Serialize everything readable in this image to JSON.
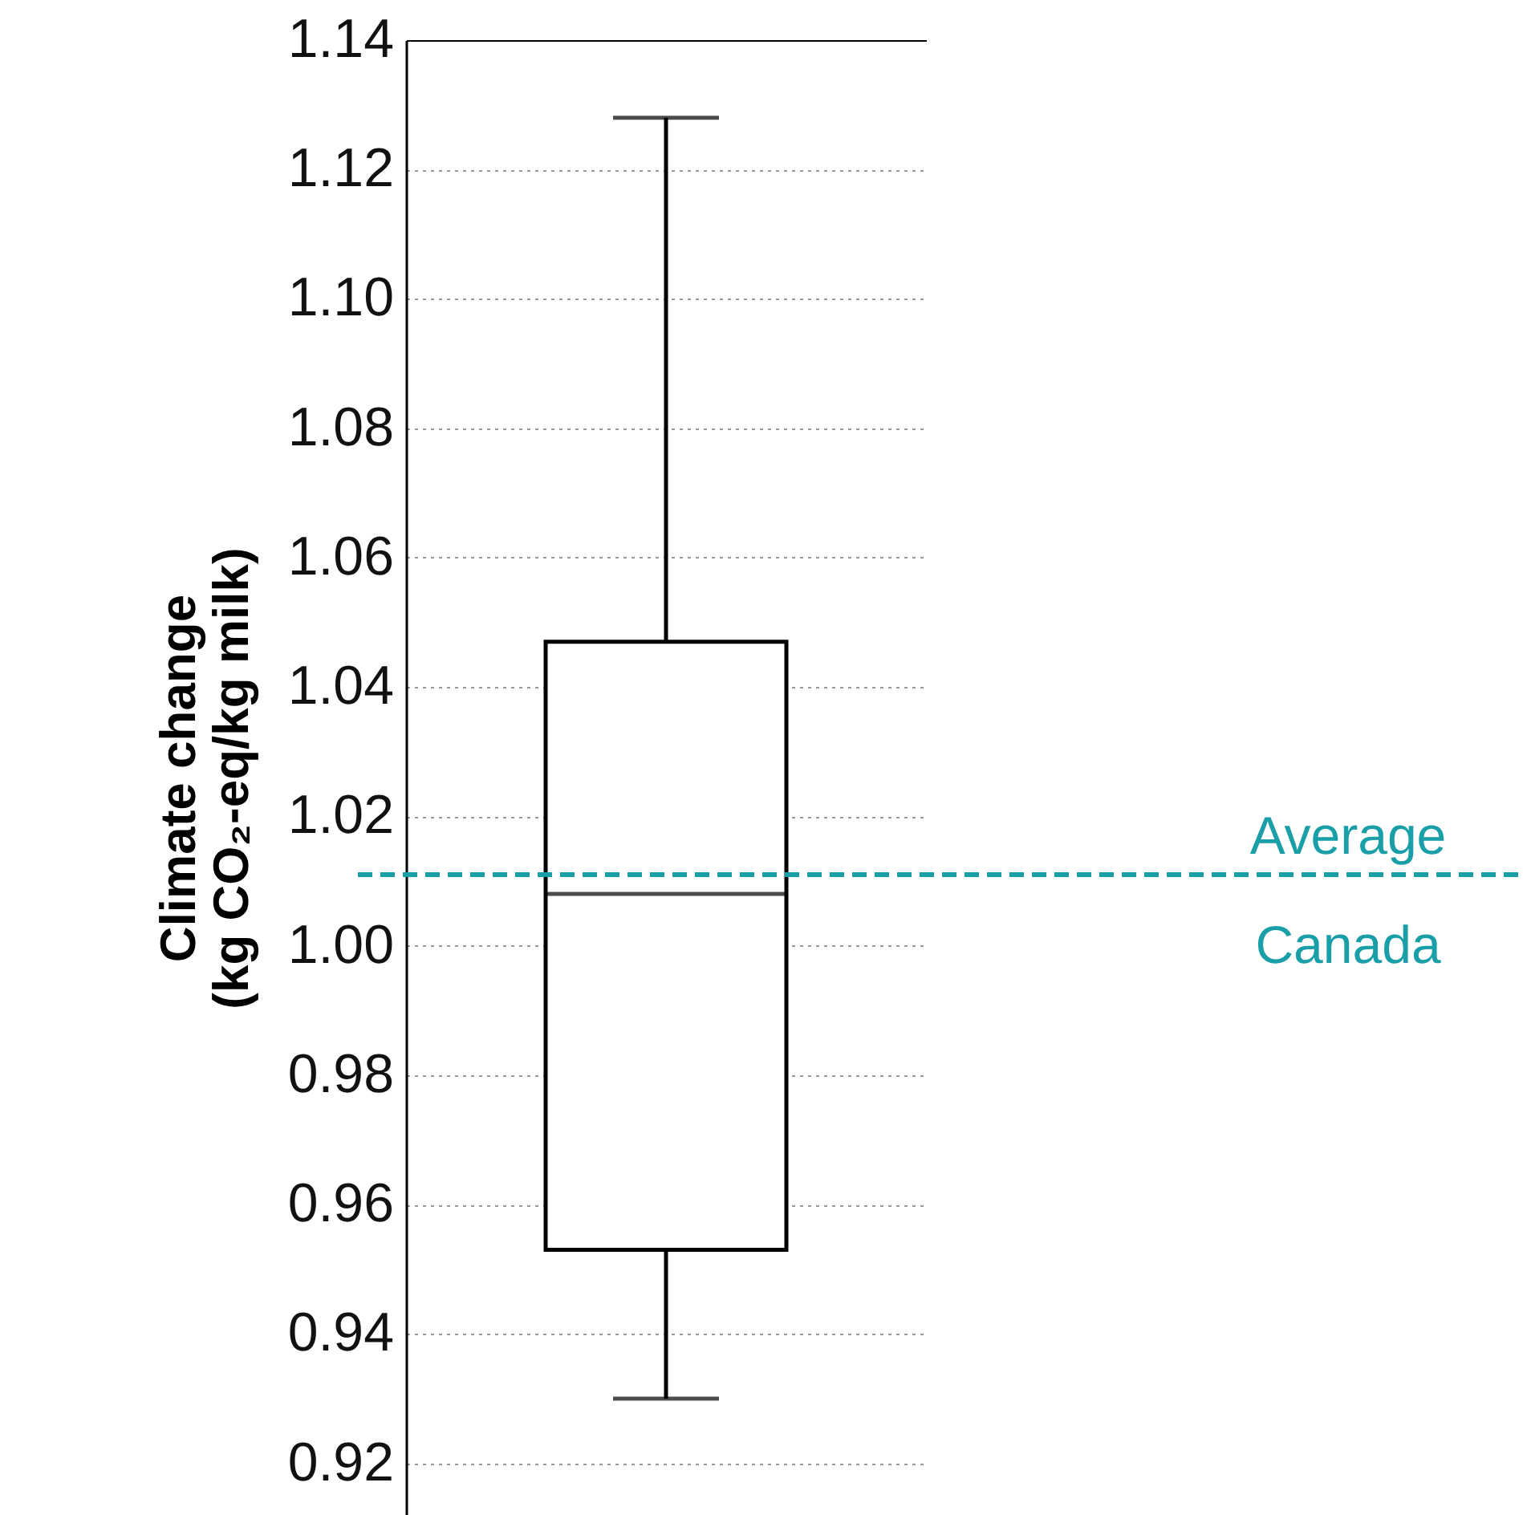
{
  "chart_data": {
    "type": "box",
    "categories": [
      null
    ],
    "ylabel": "Climate change\n(kg CO₂-eq/kg milk)",
    "boxes": [
      {
        "low": 0.93,
        "q1": 0.953,
        "median": 1.008,
        "q3": 1.047,
        "high": 1.128
      }
    ],
    "ylim": [
      0.912,
      1.14
    ],
    "yticks": [
      {
        "value": 0.92,
        "label": "0.92"
      },
      {
        "value": 0.94,
        "label": "0.94"
      },
      {
        "value": 0.96,
        "label": "0.96"
      },
      {
        "value": 0.98,
        "label": "0.98"
      },
      {
        "value": 1.0,
        "label": "1.00"
      },
      {
        "value": 1.02,
        "label": "1.02"
      },
      {
        "value": 1.04,
        "label": "1.04"
      },
      {
        "value": 1.06,
        "label": "1.06"
      },
      {
        "value": 1.08,
        "label": "1.08"
      },
      {
        "value": 1.1,
        "label": "1.10"
      },
      {
        "value": 1.12,
        "label": "1.12"
      },
      {
        "value": 1.14,
        "label": "1.14"
      }
    ],
    "ref_lines": [
      {
        "axis": "y",
        "value": 1.011,
        "label": "Average Canada",
        "color": "#1a9fa8",
        "line_style": "dashed"
      }
    ],
    "grid": "y",
    "tick_labels": "y"
  }
}
